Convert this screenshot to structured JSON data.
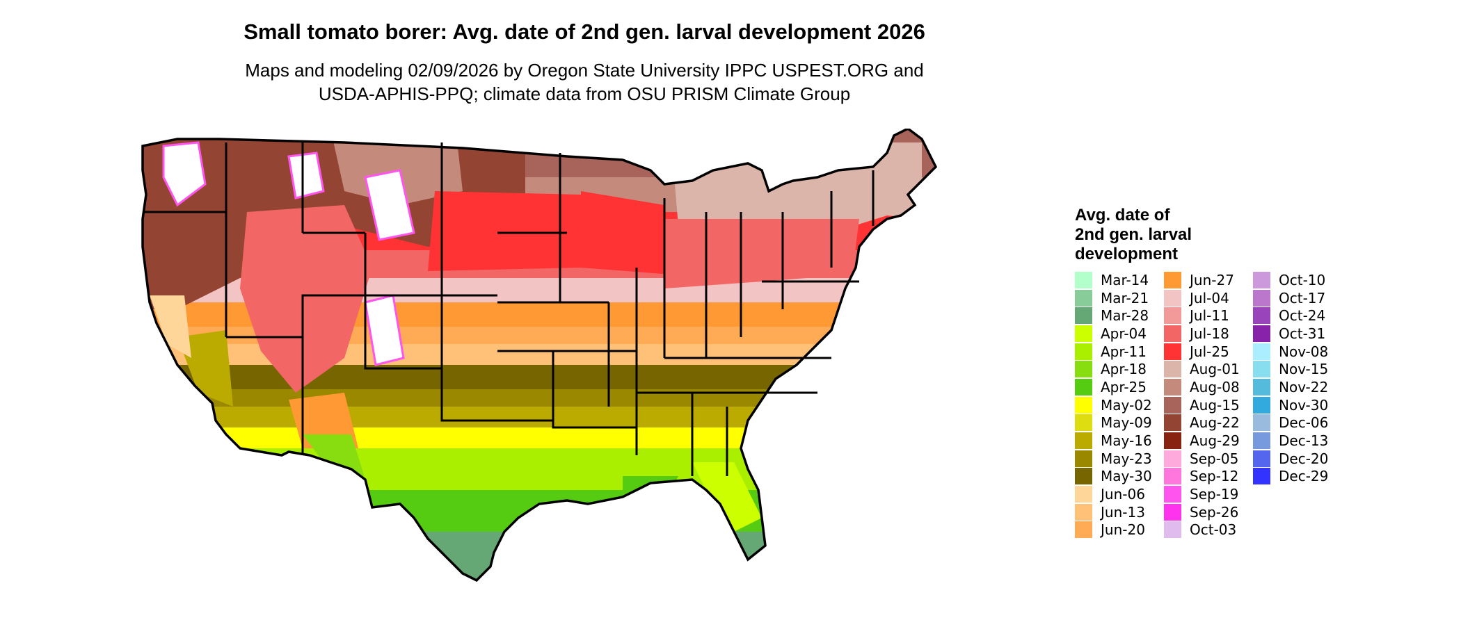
{
  "title": "Small tomato borer: Avg. date of 2nd gen. larval development 2026",
  "subtitle": {
    "line1": "Maps and modeling 02/09/2026 by Oregon State University IPPC USPEST.ORG and",
    "line2": "USDA-APHIS-PPQ; climate data from OSU PRISM Climate Group"
  },
  "legend": {
    "title_line1": "Avg. date of",
    "title_line2": "2nd gen. larval",
    "title_line3": "development",
    "items": [
      {
        "label": "Mar-14",
        "color": "#b3ffcc"
      },
      {
        "label": "Mar-21",
        "color": "#88cc99"
      },
      {
        "label": "Mar-28",
        "color": "#66a875"
      },
      {
        "label": "Apr-04",
        "color": "#ccff00"
      },
      {
        "label": "Apr-11",
        "color": "#aaee00"
      },
      {
        "label": "Apr-18",
        "color": "#88dd11"
      },
      {
        "label": "Apr-25",
        "color": "#55cc11"
      },
      {
        "label": "May-02",
        "color": "#ffff00"
      },
      {
        "label": "May-09",
        "color": "#dddd11"
      },
      {
        "label": "May-16",
        "color": "#bbaa00"
      },
      {
        "label": "May-23",
        "color": "#998800"
      },
      {
        "label": "May-30",
        "color": "#776600"
      },
      {
        "label": "Jun-06",
        "color": "#ffd699"
      },
      {
        "label": "Jun-13",
        "color": "#ffc077"
      },
      {
        "label": "Jun-20",
        "color": "#ffaa55"
      },
      {
        "label": "Jun-27",
        "color": "#ff9933"
      },
      {
        "label": "Jul-04",
        "color": "#f2c4c4"
      },
      {
        "label": "Jul-11",
        "color": "#f29999"
      },
      {
        "label": "Jul-18",
        "color": "#f26666"
      },
      {
        "label": "Jul-25",
        "color": "#ff3333"
      },
      {
        "label": "Aug-01",
        "color": "#dbb5aa"
      },
      {
        "label": "Aug-08",
        "color": "#c48b7d"
      },
      {
        "label": "Aug-15",
        "color": "#a8645a"
      },
      {
        "label": "Aug-22",
        "color": "#944433"
      },
      {
        "label": "Aug-29",
        "color": "#882211"
      },
      {
        "label": "Sep-05",
        "color": "#ffaadd"
      },
      {
        "label": "Sep-12",
        "color": "#ff77dd"
      },
      {
        "label": "Sep-19",
        "color": "#ff55ee"
      },
      {
        "label": "Sep-26",
        "color": "#ff33ee"
      },
      {
        "label": "Oct-03",
        "color": "#e0bbee"
      },
      {
        "label": "Oct-10",
        "color": "#cc99dd"
      },
      {
        "label": "Oct-17",
        "color": "#bb77cc"
      },
      {
        "label": "Oct-24",
        "color": "#9944bb"
      },
      {
        "label": "Oct-31",
        "color": "#8822aa"
      },
      {
        "label": "Nov-08",
        "color": "#aaeeff"
      },
      {
        "label": "Nov-15",
        "color": "#88ddee"
      },
      {
        "label": "Nov-22",
        "color": "#55bbdd"
      },
      {
        "label": "Nov-30",
        "color": "#33aadd"
      },
      {
        "label": "Dec-06",
        "color": "#99bbdd"
      },
      {
        "label": "Dec-13",
        "color": "#7799dd"
      },
      {
        "label": "Dec-20",
        "color": "#5566ee"
      },
      {
        "label": "Dec-29",
        "color": "#3333ff"
      }
    ]
  }
}
